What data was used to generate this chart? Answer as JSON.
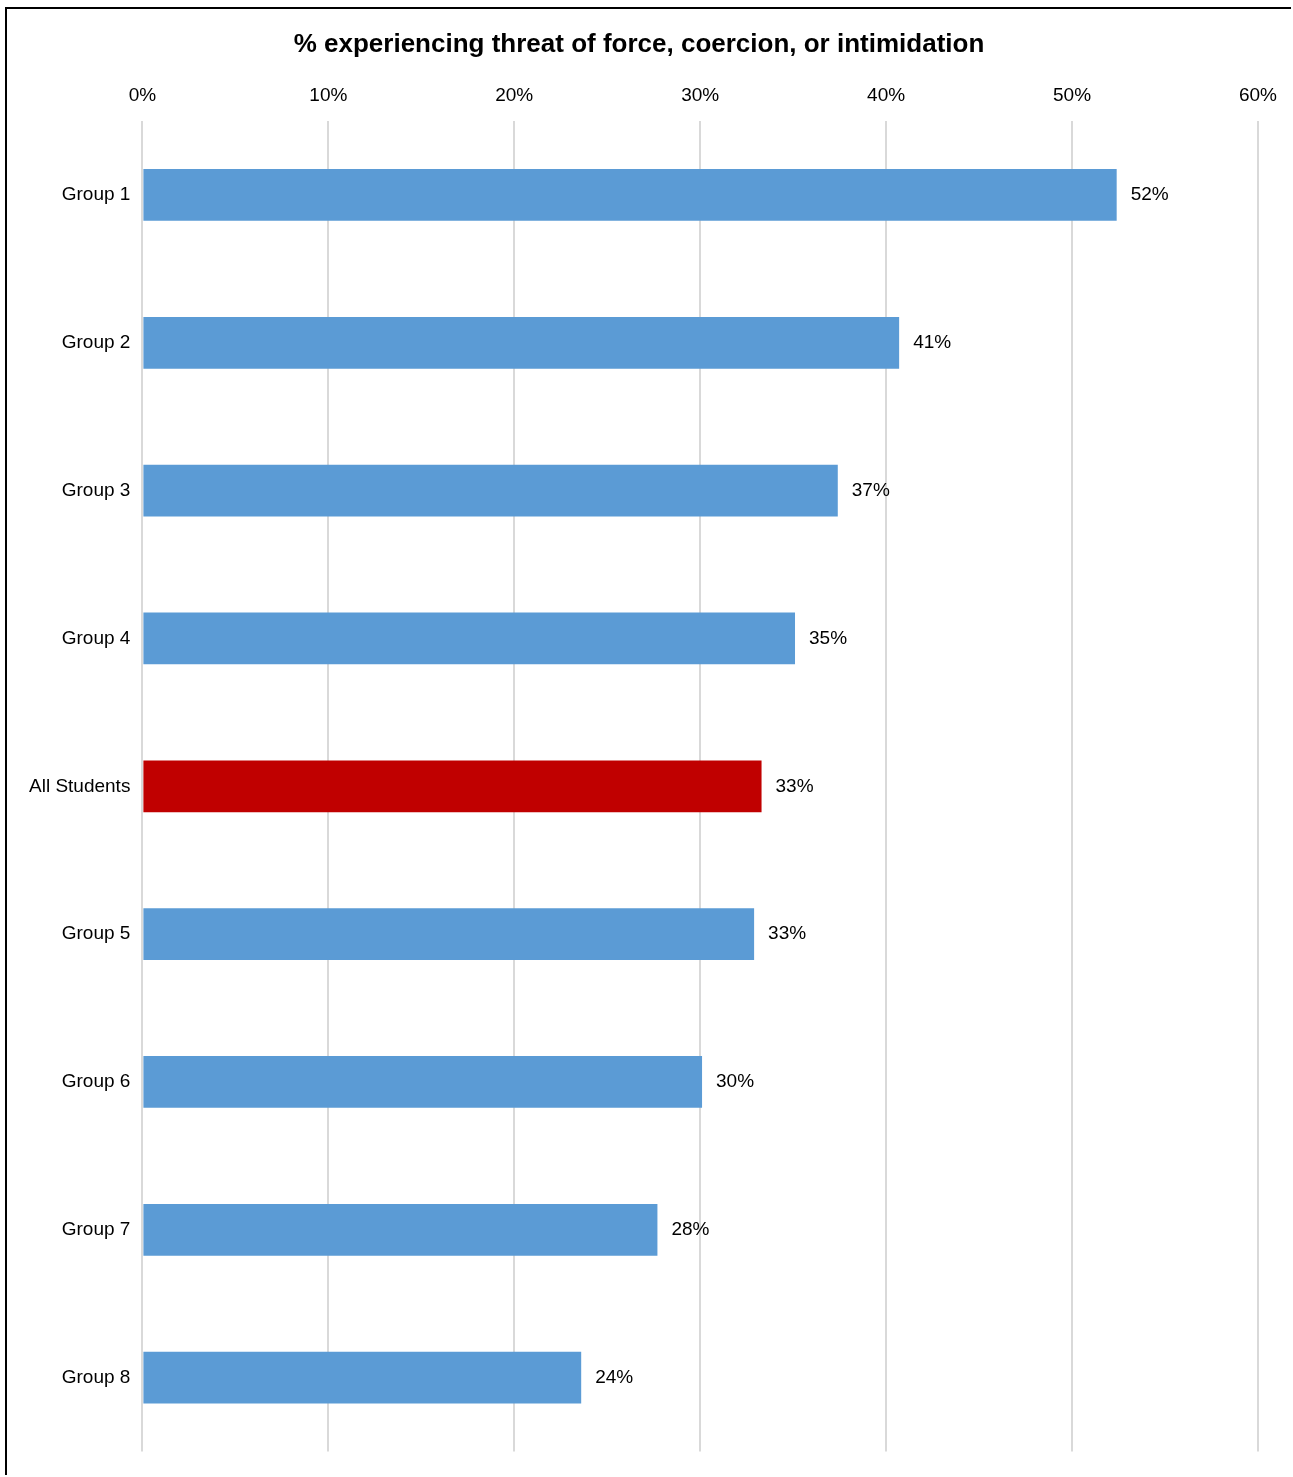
{
  "chart_data": {
    "type": "bar",
    "orientation": "horizontal",
    "title": "% experiencing threat of force, coercion, or intimidation",
    "categories": [
      "Group 1",
      "Group 2",
      "Group 3",
      "Group 4",
      "All Students",
      "Group 5",
      "Group 6",
      "Group 7",
      "Group 8"
    ],
    "values": [
      52.4,
      40.7,
      37.4,
      35.1,
      33.3,
      32.9,
      30.1,
      27.7,
      23.6
    ],
    "colors": [
      "#5b9bd5",
      "#5b9bd5",
      "#5b9bd5",
      "#5b9bd5",
      "#c00000",
      "#5b9bd5",
      "#5b9bd5",
      "#5b9bd5",
      "#5b9bd5"
    ],
    "value_labels": [
      "52%",
      "41%",
      "37%",
      "35%",
      "33%",
      "33%",
      "30%",
      "28%",
      "24%"
    ],
    "xlim": [
      0,
      60
    ],
    "xticks": [
      {
        "value": 0,
        "label": "0%"
      },
      {
        "value": 10,
        "label": "10%"
      },
      {
        "value": 20,
        "label": "20%"
      },
      {
        "value": 30,
        "label": "30%"
      },
      {
        "value": 40,
        "label": "40%"
      },
      {
        "value": 50,
        "label": "50%"
      },
      {
        "value": 60,
        "label": "60%"
      }
    ],
    "grid": "x",
    "legend": false
  }
}
